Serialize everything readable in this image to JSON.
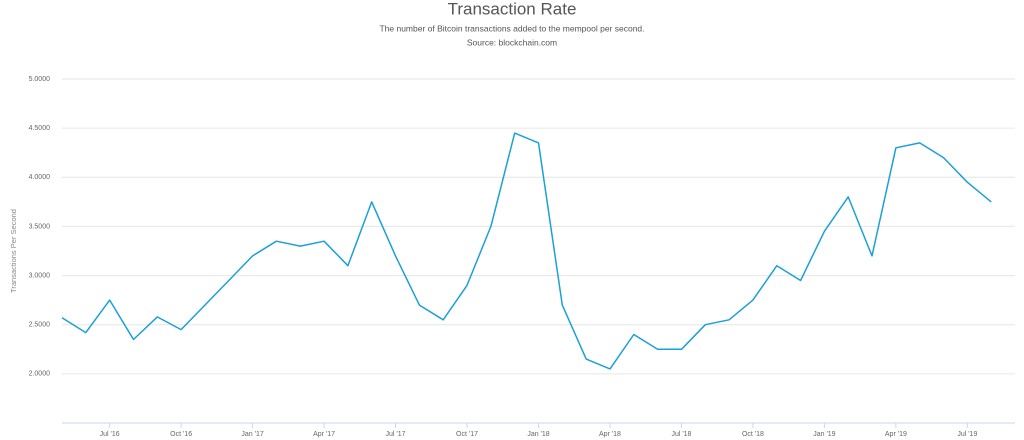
{
  "chart_data": {
    "type": "line",
    "title": "Transaction Rate",
    "subtitle": "The number of Bitcoin transactions added to the mempool per second.",
    "source": "Source: blockchain.com",
    "y_label": "Transactions Per Second",
    "x": [
      "2016-05",
      "2016-06",
      "2016-07",
      "2016-08",
      "2016-09",
      "2016-10",
      "2016-11",
      "2016-12",
      "2017-01",
      "2017-02",
      "2017-03",
      "2017-04",
      "2017-05",
      "2017-06",
      "2017-07",
      "2017-08",
      "2017-09",
      "2017-10",
      "2017-11",
      "2017-12",
      "2018-01",
      "2018-02",
      "2018-03",
      "2018-04",
      "2018-05",
      "2018-06",
      "2018-07",
      "2018-08",
      "2018-09",
      "2018-10",
      "2018-11",
      "2018-12",
      "2019-01",
      "2019-02",
      "2019-03",
      "2019-04",
      "2019-05",
      "2019-06",
      "2019-07",
      "2019-08"
    ],
    "series": [
      {
        "name": "Transactions Per Second",
        "color": "#1ba0d7",
        "values": [
          2.57,
          2.42,
          2.75,
          2.35,
          2.58,
          2.45,
          2.7,
          2.95,
          3.2,
          3.35,
          3.3,
          3.35,
          3.1,
          3.75,
          3.2,
          2.7,
          2.55,
          2.9,
          3.5,
          4.45,
          4.35,
          2.7,
          2.15,
          2.05,
          2.4,
          2.25,
          2.25,
          2.5,
          2.55,
          2.75,
          3.1,
          2.95,
          3.45,
          3.8,
          3.2,
          4.3,
          4.35,
          4.2,
          3.95,
          3.75
        ]
      }
    ],
    "xlim": [
      "2016-05",
      "2019-09"
    ],
    "xticks": [
      {
        "value": "2016-07",
        "label": "Jul '16"
      },
      {
        "value": "2016-10",
        "label": "Oct '16"
      },
      {
        "value": "2017-01",
        "label": "Jan '17"
      },
      {
        "value": "2017-04",
        "label": "Apr '17"
      },
      {
        "value": "2017-07",
        "label": "Jul '17"
      },
      {
        "value": "2017-10",
        "label": "Oct '17"
      },
      {
        "value": "2018-01",
        "label": "Jan '18"
      },
      {
        "value": "2018-04",
        "label": "Apr '18"
      },
      {
        "value": "2018-07",
        "label": "Jul '18"
      },
      {
        "value": "2018-10",
        "label": "Oct '18"
      },
      {
        "value": "2019-01",
        "label": "Jan '19"
      },
      {
        "value": "2019-04",
        "label": "Apr '19"
      },
      {
        "value": "2019-07",
        "label": "Jul '19"
      }
    ],
    "ylim": [
      1.5,
      5.0
    ],
    "yticks": [
      {
        "value": 2.0,
        "label": "2.0000"
      },
      {
        "value": 2.5,
        "label": "2.5000"
      },
      {
        "value": 3.0,
        "label": "3.0000"
      },
      {
        "value": 3.5,
        "label": "3.5000"
      },
      {
        "value": 4.0,
        "label": "4.0000"
      },
      {
        "value": 4.5,
        "label": "4.5000"
      },
      {
        "value": 5.0,
        "label": "5.0000"
      }
    ],
    "grid": true
  }
}
